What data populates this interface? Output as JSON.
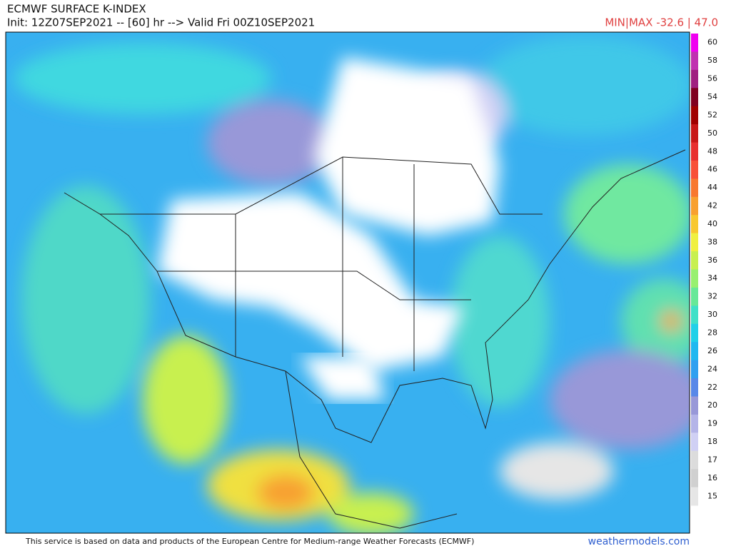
{
  "header": {
    "title": "ECMWF SURFACE K-INDEX",
    "init": "Init: 12Z07SEP2021 -- [60] hr --> Valid Fri 00Z10SEP2021",
    "minmax": "MIN|MAX -32.6 | 47.0"
  },
  "colorbar": {
    "levels": [
      {
        "value": 60,
        "color": "#f000f0"
      },
      {
        "value": 58,
        "color": "#c030b0"
      },
      {
        "value": 56,
        "color": "#a02080"
      },
      {
        "value": 54,
        "color": "#800020"
      },
      {
        "value": 52,
        "color": "#a00000"
      },
      {
        "value": 50,
        "color": "#c81818"
      },
      {
        "value": 48,
        "color": "#e83030"
      },
      {
        "value": 46,
        "color": "#f85038"
      },
      {
        "value": 44,
        "color": "#f87830"
      },
      {
        "value": 42,
        "color": "#f8a030"
      },
      {
        "value": 40,
        "color": "#f8c830"
      },
      {
        "value": 38,
        "color": "#f0f040"
      },
      {
        "value": 36,
        "color": "#c8f050"
      },
      {
        "value": 34,
        "color": "#98f070"
      },
      {
        "value": 32,
        "color": "#68e898"
      },
      {
        "value": 30,
        "color": "#40e0c8"
      },
      {
        "value": 28,
        "color": "#20d0e8"
      },
      {
        "value": 26,
        "color": "#20b8f0"
      },
      {
        "value": 24,
        "color": "#30a0f0"
      },
      {
        "value": 22,
        "color": "#5888e8"
      },
      {
        "value": 20,
        "color": "#9898d8"
      },
      {
        "value": 19,
        "color": "#b4b4e8"
      },
      {
        "value": 18,
        "color": "#d0d0f4"
      },
      {
        "value": 17,
        "color": "#dcdcdc"
      },
      {
        "value": 16,
        "color": "#d0d0d0"
      },
      {
        "value": 15,
        "color": "#e6e6e6"
      }
    ]
  },
  "footer": {
    "notice": "This service is based on data and products of the European Centre for Medium-range Weather Forecasts (ECMWF)",
    "site": "weathermodels.com"
  }
}
